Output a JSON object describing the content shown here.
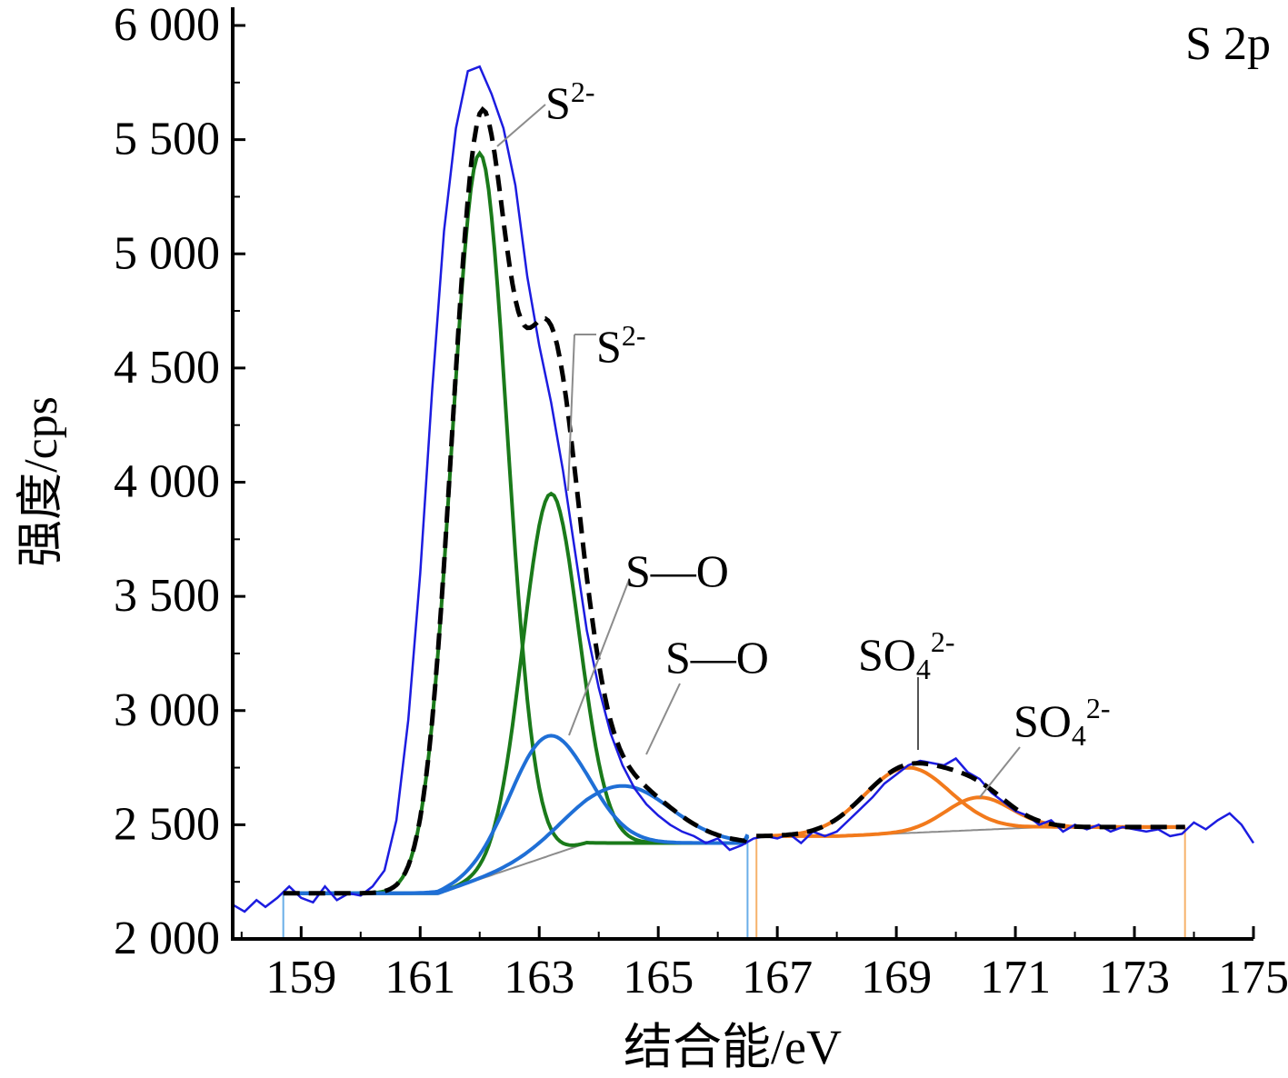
{
  "chart_data": {
    "type": "line",
    "panel_label": "S 2p",
    "xlabel": "结合能/eV",
    "ylabel": "强度/cps",
    "xlim": [
      157.85,
      175
    ],
    "ylim": [
      2000,
      6000
    ],
    "x_ticks": [
      159,
      161,
      163,
      165,
      167,
      169,
      171,
      173,
      175
    ],
    "y_ticks": [
      2000,
      2500,
      3000,
      3500,
      4000,
      4500,
      5000,
      5500,
      6000
    ],
    "y_tick_labels": [
      "2 000",
      "2 500",
      "3 000",
      "3 500",
      "4 000",
      "4 500",
      "5 000",
      "5 500",
      "6 000"
    ],
    "grid": false,
    "fit_range_1": [
      158.7,
      166.5
    ],
    "fit_range_2": [
      166.65,
      173.85
    ],
    "colors": {
      "raw": "#1c1ce0",
      "envelope": "#000000",
      "sulfide": "#1a7a1a",
      "s_o": "#1f6fd6",
      "sulfate": "#f27a1c",
      "background": "#8c8c8c",
      "range_marker_1": "#6aaee8",
      "range_marker_2": "#f6b26b"
    },
    "peaks": [
      {
        "group": "sulfide",
        "center": 162.0,
        "height": 5440,
        "fwhm": 1.1
      },
      {
        "group": "sulfide",
        "center": 163.2,
        "height": 3950,
        "fwhm": 1.1
      },
      {
        "group": "s_o",
        "center": 163.2,
        "height": 2890,
        "fwhm": 1.5
      },
      {
        "group": "s_o",
        "center": 164.4,
        "height": 2670,
        "fwhm": 1.9
      },
      {
        "group": "sulfate",
        "center": 169.2,
        "height": 2750,
        "fwhm": 1.7
      },
      {
        "group": "sulfate",
        "center": 170.4,
        "height": 2620,
        "fwhm": 1.3
      }
    ],
    "raw_spectrum_x": [
      157.85,
      158.05,
      158.25,
      158.4,
      158.6,
      158.8,
      159.0,
      159.2,
      159.4,
      159.6,
      159.8,
      160.0,
      160.2,
      160.4,
      160.6,
      160.8,
      161.0,
      161.2,
      161.4,
      161.6,
      161.8,
      162.0,
      162.2,
      162.4,
      162.6,
      162.8,
      163.0,
      163.2,
      163.4,
      163.6,
      163.8,
      164.0,
      164.2,
      164.4,
      164.6,
      164.8,
      165.0,
      165.2,
      165.4,
      165.6,
      165.8,
      166.0,
      166.2,
      166.4,
      166.6,
      166.8,
      167.0,
      167.2,
      167.4,
      167.6,
      167.8,
      168.0,
      168.2,
      168.4,
      168.6,
      168.8,
      169.0,
      169.2,
      169.4,
      169.6,
      169.8,
      170.0,
      170.2,
      170.4,
      170.6,
      170.8,
      171.0,
      171.2,
      171.4,
      171.6,
      171.8,
      172.0,
      172.2,
      172.4,
      172.6,
      172.8,
      173.0,
      173.2,
      173.4,
      173.6,
      173.8,
      174.0,
      174.2,
      174.4,
      174.6,
      174.8,
      175.0
    ],
    "raw_spectrum_y": [
      2150,
      2120,
      2170,
      2140,
      2180,
      2230,
      2180,
      2160,
      2230,
      2170,
      2200,
      2190,
      2230,
      2300,
      2520,
      2960,
      3600,
      4400,
      5100,
      5550,
      5800,
      5820,
      5700,
      5550,
      5300,
      4900,
      4600,
      4350,
      4050,
      3700,
      3350,
      3100,
      2900,
      2760,
      2660,
      2590,
      2540,
      2500,
      2470,
      2450,
      2420,
      2440,
      2390,
      2410,
      2440,
      2450,
      2440,
      2460,
      2420,
      2470,
      2450,
      2470,
      2520,
      2570,
      2620,
      2680,
      2720,
      2760,
      2780,
      2770,
      2760,
      2790,
      2730,
      2700,
      2640,
      2600,
      2560,
      2540,
      2500,
      2520,
      2470,
      2500,
      2480,
      2500,
      2470,
      2490,
      2480,
      2470,
      2480,
      2450,
      2460,
      2510,
      2480,
      2520,
      2550,
      2500,
      2420
    ]
  },
  "annotations": [
    {
      "label": "S",
      "sup": "2-",
      "sub": ""
    },
    {
      "label": "S",
      "sup": "2-",
      "sub": ""
    },
    {
      "label": "S—O",
      "sup": "",
      "sub": ""
    },
    {
      "label": "S—O",
      "sup": "",
      "sub": ""
    },
    {
      "label": "SO",
      "sup": "2-",
      "sub": "4"
    },
    {
      "label": "SO",
      "sup": "2-",
      "sub": "4"
    }
  ]
}
